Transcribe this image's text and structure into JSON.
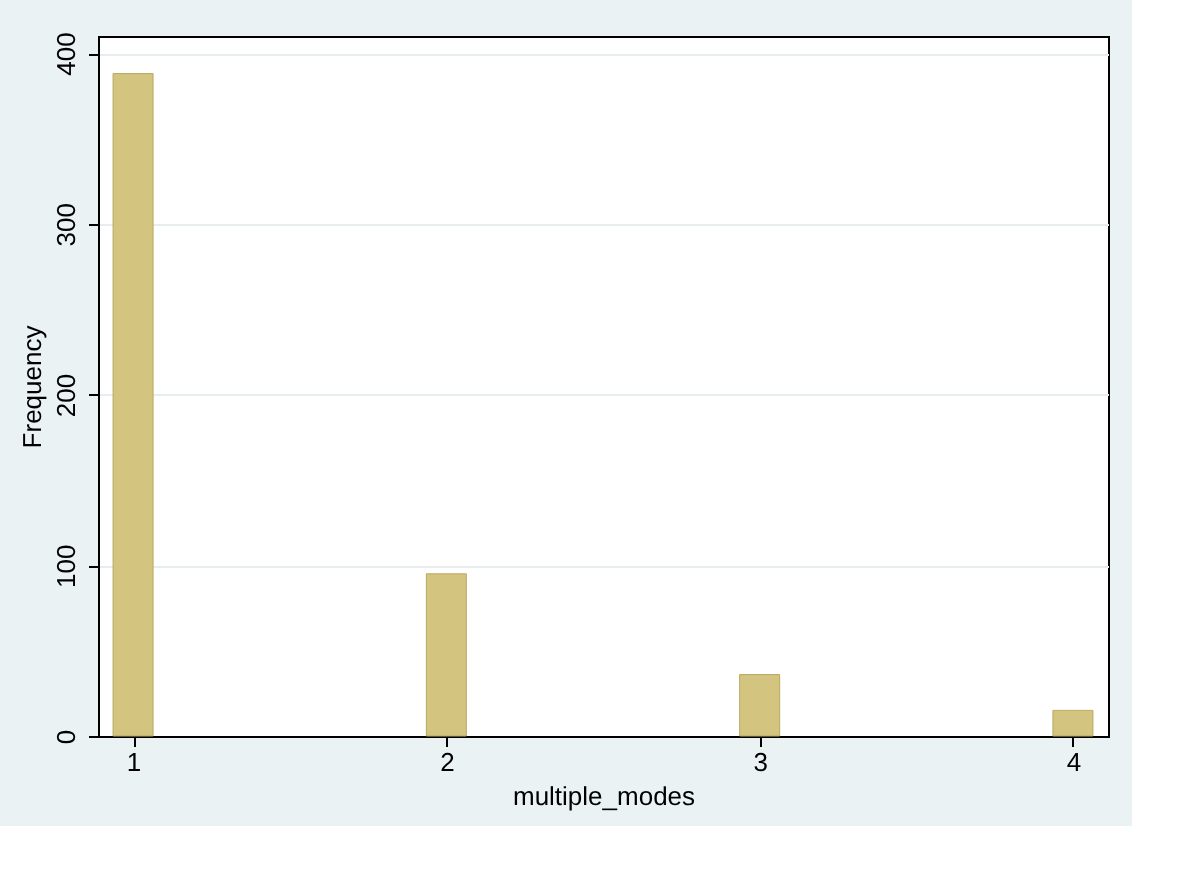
{
  "chart_data": {
    "type": "bar",
    "xlabel": "multiple_modes",
    "ylabel": "Frequency",
    "x": [
      1,
      2,
      3,
      4
    ],
    "values": [
      388,
      95,
      36,
      15
    ],
    "color": "#d3c47f",
    "xlim": [
      0.92,
      4.08
    ],
    "xticks": [
      1,
      2,
      3,
      4
    ],
    "ylim": [
      0,
      410
    ],
    "yticks": [
      0,
      100,
      200,
      300,
      400
    ],
    "grid": "y"
  }
}
